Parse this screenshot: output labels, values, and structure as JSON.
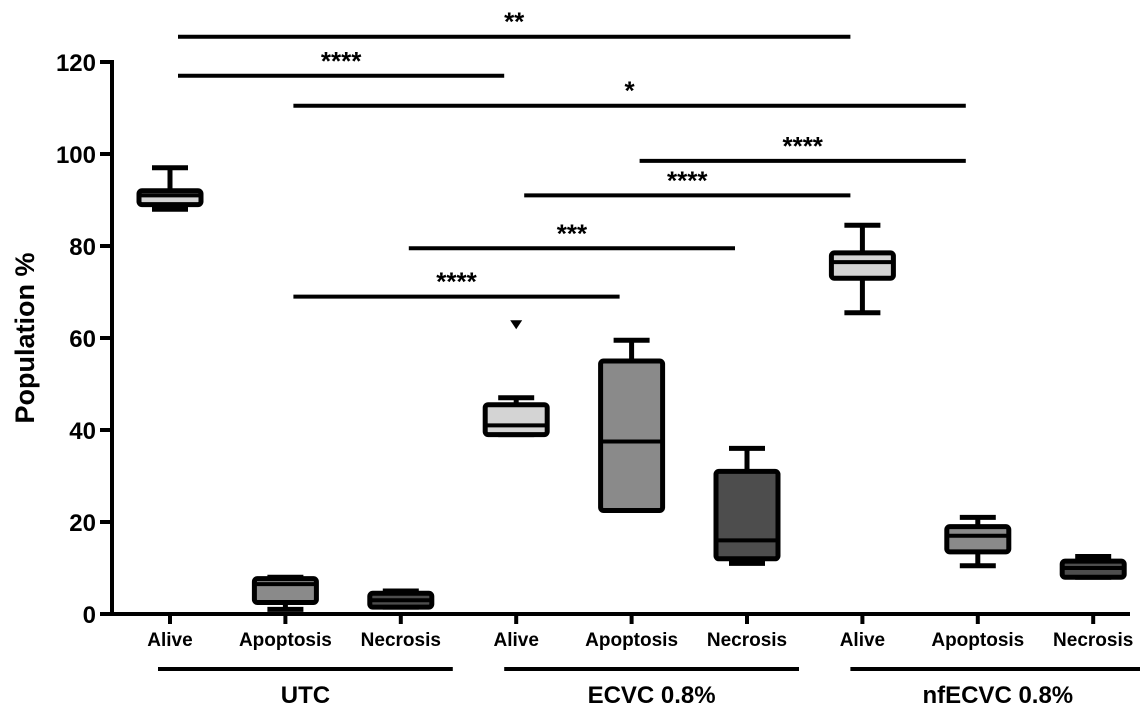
{
  "chart_data": {
    "type": "box",
    "ylabel": "Population %",
    "ylim": [
      0,
      120
    ],
    "yticks": [
      "0",
      "20",
      "40",
      "60",
      "80",
      "100",
      "120"
    ],
    "boxes": [
      {
        "group": "UTC",
        "label": "Alive",
        "min": 88,
        "q1": 89,
        "median": 91,
        "q3": 92,
        "max": 97,
        "color": "#d4d4d4"
      },
      {
        "group": "UTC",
        "label": "Apoptosis",
        "min": 1,
        "q1": 2.5,
        "median": 6.5,
        "q3": 7.7,
        "max": 8,
        "color": "#8a8a8a"
      },
      {
        "group": "UTC",
        "label": "Necrosis",
        "min": 1.5,
        "q1": 1.5,
        "median": 3,
        "q3": 4.5,
        "max": 5,
        "color": "#4d4d4d"
      },
      {
        "group": "ECVC 0.8%",
        "label": "Alive",
        "min": 39,
        "q1": 39,
        "median": 41,
        "q3": 45.5,
        "max": 47,
        "outliers": [
          63
        ],
        "color": "#d4d4d4"
      },
      {
        "group": "ECVC 0.8%",
        "label": "Apoptosis",
        "min": 22.5,
        "q1": 22.5,
        "median": 37.5,
        "q3": 55,
        "max": 59.5,
        "color": "#8a8a8a"
      },
      {
        "group": "ECVC 0.8%",
        "label": "Necrosis",
        "min": 11,
        "q1": 12,
        "median": 16,
        "q3": 31,
        "max": 36,
        "color": "#4d4d4d"
      },
      {
        "group": "nfECVC 0.8%",
        "label": "Alive",
        "min": 65.5,
        "q1": 73,
        "median": 76.5,
        "q3": 78.5,
        "max": 84.5,
        "color": "#d4d4d4"
      },
      {
        "group": "nfECVC 0.8%",
        "label": "Apoptosis",
        "min": 10.5,
        "q1": 13.5,
        "median": 17,
        "q3": 19,
        "max": 21,
        "color": "#8a8a8a"
      },
      {
        "group": "nfECVC 0.8%",
        "label": "Necrosis",
        "min": 8,
        "q1": 8,
        "median": 10,
        "q3": 11.5,
        "max": 12.5,
        "color": "#4d4d4d"
      }
    ],
    "groups": [
      {
        "label": "UTC",
        "from": 0,
        "to": 2
      },
      {
        "label": "ECVC 0.8%",
        "from": 3,
        "to": 5
      },
      {
        "label": "nfECVC 0.8%",
        "from": 6,
        "to": 8
      }
    ],
    "significance": [
      {
        "from": 0,
        "to": 6,
        "y": 125.5,
        "label": "**"
      },
      {
        "from": 0,
        "to": 3,
        "y": 117,
        "label": "****"
      },
      {
        "from": 1,
        "to": 7,
        "y": 110.5,
        "label": "*"
      },
      {
        "from": 4,
        "to": 7,
        "y": 98.5,
        "label": "****"
      },
      {
        "from": 3,
        "to": 6,
        "y": 91,
        "label": "****"
      },
      {
        "from": 2,
        "to": 5,
        "y": 79.5,
        "label": "***"
      },
      {
        "from": 1,
        "to": 4,
        "y": 69,
        "label": "****"
      }
    ]
  }
}
